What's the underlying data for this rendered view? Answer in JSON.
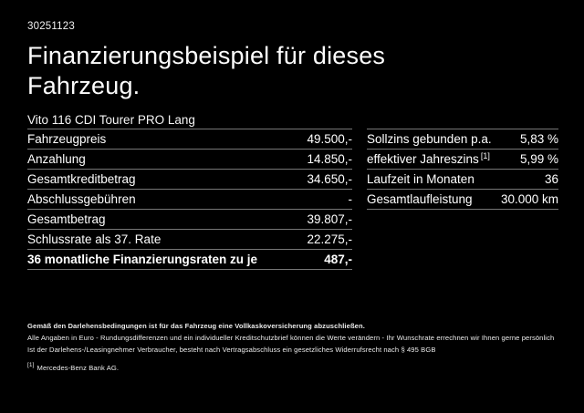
{
  "page": {
    "doc_number": "30251123",
    "title": "Finanzierungsbeispiel für dieses Fahrzeug.",
    "vehicle": "Vito 116 CDI Tourer PRO Lang"
  },
  "finance_table": {
    "rows": [
      {
        "label": "Fahrzeugpreis",
        "value": "49.500,-",
        "bold": false
      },
      {
        "label": "Anzahlung",
        "value": "14.850,-",
        "bold": false
      },
      {
        "label": "Gesamtkreditbetrag",
        "value": "34.650,-",
        "bold": false
      },
      {
        "label": "Abschlussgebühren",
        "value": "-",
        "bold": false
      },
      {
        "label": "Gesamtbetrag",
        "value": "39.807,-",
        "bold": false
      },
      {
        "label": "Schlussrate als 37. Rate",
        "value": "22.275,-",
        "bold": false
      },
      {
        "label": "36 monatliche Finanzierungsraten zu je",
        "value": "487,-",
        "bold": true
      }
    ]
  },
  "conditions_table": {
    "rows": [
      {
        "label": "Sollzins gebunden p.a.",
        "value": "5,83 %"
      },
      {
        "label": "effektiver Jahreszins",
        "sup": "[1]",
        "value": "5,99 %"
      },
      {
        "label": "Laufzeit in Monaten",
        "value": "36"
      },
      {
        "label": "Gesamtlaufleistung",
        "value": "30.000 km"
      }
    ]
  },
  "footer": {
    "bold_note": "Gemäß den Darlehensbedingungen ist für das Fahrzeug eine Vollkaskoversicherung abzuschließen.",
    "note_line1": "Alle Angaben in Euro - Rundungsdifferenzen und ein individueller Kreditschutzbrief können die Werte verändern - Ihr Wunschrate errechnen wir Ihnen gerne persönlich",
    "note_line2": "Ist der Darlehens-/Leasingnehmer Verbraucher, besteht nach Vertragsabschluss ein gesetzliches Widerrufsrecht nach § 495 BGB",
    "footnote_marker": "[1]",
    "footnote_text": "Mercedes-Benz Bank AG."
  },
  "colors": {
    "background": "#000000",
    "text": "#ffffff",
    "divider": "#777777"
  }
}
